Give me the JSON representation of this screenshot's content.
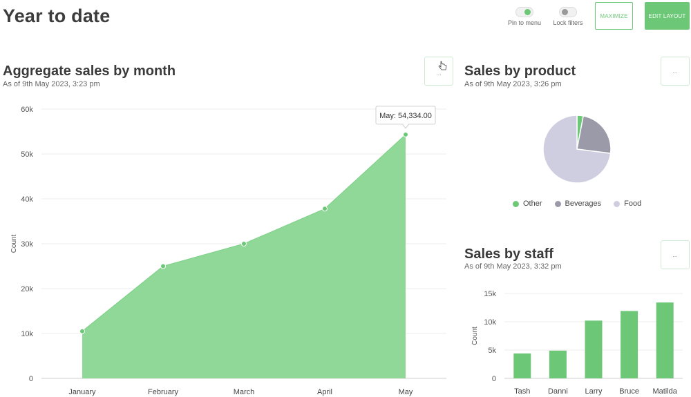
{
  "header": {
    "title": "Year to date",
    "toggles": [
      {
        "label": "Pin to menu",
        "on": true
      },
      {
        "label": "Lock filters",
        "on": false
      }
    ],
    "maximize_label": "MAXIMIZE",
    "edit_layout_label": "EDIT LAYOUT"
  },
  "colors": {
    "accent": "#6cc877",
    "area_fill": "#8fd898",
    "beverages": "#9b9aa8",
    "food": "#cfcde0"
  },
  "cards": {
    "aggregate": {
      "title": "Aggregate sales by month",
      "subtitle": "As of 9th May 2023, 3:23 pm",
      "menu": "..."
    },
    "product": {
      "title": "Sales by product",
      "subtitle": "As of 9th May 2023, 3:26 pm",
      "menu": "..."
    },
    "staff": {
      "title": "Sales by staff",
      "subtitle": "As of 9th May 2023, 3:32 pm",
      "menu": "..."
    }
  },
  "chart_data": [
    {
      "type": "area",
      "categories": [
        "January",
        "February",
        "March",
        "April",
        "May"
      ],
      "values": [
        10500,
        25000,
        30000,
        37800,
        54334
      ],
      "ylabel": "Count",
      "ylim": [
        0,
        60000
      ],
      "yticks": [
        "0",
        "10k",
        "20k",
        "30k",
        "40k",
        "50k",
        "60k"
      ],
      "tooltip": "May: 54,334.00",
      "grid": true
    },
    {
      "type": "pie",
      "labels": [
        "Other",
        "Beverages",
        "Food"
      ],
      "values": [
        3,
        24,
        73
      ],
      "legend": "bottom"
    },
    {
      "type": "bar",
      "categories": [
        "Tash",
        "Danni",
        "Larry",
        "Bruce",
        "Matilda"
      ],
      "values": [
        4400,
        4900,
        10200,
        11900,
        13400
      ],
      "ylabel": "Count",
      "ylim": [
        0,
        15000
      ],
      "yticks": [
        "0",
        "5k",
        "10k",
        "15k"
      ],
      "grid": true
    }
  ]
}
